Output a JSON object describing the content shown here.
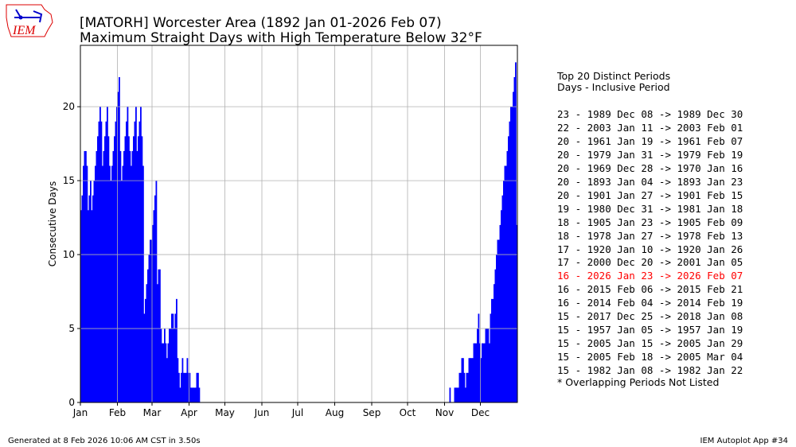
{
  "logo_text": "IEM",
  "title_line1": "[MATORH] Worcester Area (1892 Jan 01-2026 Feb 07)",
  "title_line2": "Maximum Straight Days with High Temperature Below 32°F",
  "legend": {
    "heading1": "Top 20 Distinct Periods",
    "heading2": "Days - Inclusive Period",
    "note": "* Overlapping Periods Not Listed",
    "highlight_color": "#ff0000",
    "rows": [
      {
        "text": "23 - 1989 Dec 08 -> 1989 Dec 30",
        "hl": false
      },
      {
        "text": "22 - 2003 Jan 11 -> 2003 Feb 01",
        "hl": false
      },
      {
        "text": "20 - 1961 Jan 19 -> 1961 Feb 07",
        "hl": false
      },
      {
        "text": "20 - 1979 Jan 31 -> 1979 Feb 19",
        "hl": false
      },
      {
        "text": "20 - 1969 Dec 28 -> 1970 Jan 16",
        "hl": false
      },
      {
        "text": "20 - 1893 Jan 04 -> 1893 Jan 23",
        "hl": false
      },
      {
        "text": "20 - 1901 Jan 27 -> 1901 Feb 15",
        "hl": false
      },
      {
        "text": "19 - 1980 Dec 31 -> 1981 Jan 18",
        "hl": false
      },
      {
        "text": "18 - 1905 Jan 23 -> 1905 Feb 09",
        "hl": false
      },
      {
        "text": "18 - 1978 Jan 27 -> 1978 Feb 13",
        "hl": false
      },
      {
        "text": "17 - 1920 Jan 10 -> 1920 Jan 26",
        "hl": false
      },
      {
        "text": "17 - 2000 Dec 20 -> 2001 Jan 05",
        "hl": false
      },
      {
        "text": "16 - 2026 Jan 23 -> 2026 Feb 07",
        "hl": true
      },
      {
        "text": "16 - 2015 Feb 06 -> 2015 Feb 21",
        "hl": false
      },
      {
        "text": "16 - 2014 Feb 04 -> 2014 Feb 19",
        "hl": false
      },
      {
        "text": "15 - 2017 Dec 25 -> 2018 Jan 08",
        "hl": false
      },
      {
        "text": "15 - 1957 Jan 05 -> 1957 Jan 19",
        "hl": false
      },
      {
        "text": "15 - 2005 Jan 15 -> 2005 Jan 29",
        "hl": false
      },
      {
        "text": "15 - 2005 Feb 18 -> 2005 Mar 04",
        "hl": false
      },
      {
        "text": "15 - 1982 Jan 08 -> 1982 Jan 22",
        "hl": false
      }
    ]
  },
  "footer": {
    "left": "Generated at 8 Feb 2026 10:06 AM CST in 3.50s",
    "right": "IEM Autoplot App #34"
  },
  "chart_data": {
    "type": "bar",
    "title": "Maximum Straight Days with High Temperature Below 32°F",
    "xlabel": "",
    "ylabel": "Consecutive Days",
    "xlim": [
      1,
      366
    ],
    "ylim": [
      0,
      24.15
    ],
    "bar_color": "#0000ff",
    "grid": true,
    "xticks": [
      {
        "day": 1,
        "label": "Jan"
      },
      {
        "day": 32,
        "label": "Feb"
      },
      {
        "day": 61,
        "label": "Mar"
      },
      {
        "day": 92,
        "label": "Apr"
      },
      {
        "day": 122,
        "label": "May"
      },
      {
        "day": 153,
        "label": "Jun"
      },
      {
        "day": 183,
        "label": "Jul"
      },
      {
        "day": 214,
        "label": "Aug"
      },
      {
        "day": 245,
        "label": "Sep"
      },
      {
        "day": 275,
        "label": "Oct"
      },
      {
        "day": 306,
        "label": "Nov"
      },
      {
        "day": 336,
        "label": "Dec"
      }
    ],
    "yticks": [
      0,
      5,
      10,
      15,
      20
    ],
    "note": "values indexed by day of year starting at day 1; unlisted days are 0",
    "values_jan_apr": [
      13,
      14,
      16,
      17,
      17,
      16,
      13,
      14,
      15,
      13,
      14,
      15,
      16,
      17,
      18,
      19,
      20,
      19,
      16,
      17,
      18,
      19,
      20,
      18,
      16,
      15,
      16,
      17,
      18,
      19,
      20,
      21,
      22,
      17,
      15,
      16,
      17,
      18,
      19,
      20,
      18,
      17,
      16,
      17,
      18,
      19,
      20,
      17,
      18,
      19,
      20,
      18,
      16,
      6,
      7,
      8,
      9,
      10,
      11,
      11,
      12,
      13,
      14,
      15,
      8,
      9,
      9,
      5,
      4,
      4,
      5,
      4,
      3,
      4,
      5,
      5,
      6,
      6,
      5,
      6,
      7,
      3,
      2,
      1,
      2,
      3,
      2,
      2,
      2,
      3,
      2,
      2,
      1,
      1,
      1,
      1,
      1,
      2,
      2,
      1
    ],
    "values_nov_dec_start_day": 306,
    "values_nov_dec": [
      0,
      0,
      0,
      0,
      1,
      0,
      0,
      0,
      1,
      1,
      1,
      1,
      2,
      2,
      3,
      3,
      2,
      1,
      2,
      2,
      3,
      3,
      3,
      3,
      4,
      4,
      4,
      5,
      6,
      4,
      3,
      4,
      4,
      4,
      5,
      5,
      5,
      4,
      6,
      7,
      7,
      8,
      9,
      10,
      11,
      11,
      12,
      13,
      14,
      15,
      16,
      16,
      17,
      18,
      19,
      20,
      20,
      21,
      22,
      23,
      12
    ]
  }
}
